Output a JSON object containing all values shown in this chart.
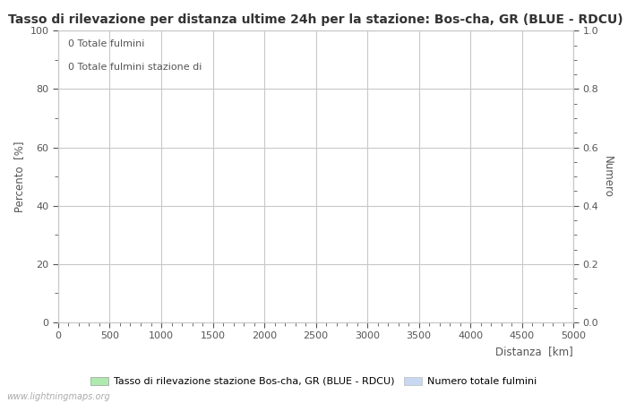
{
  "title": "Tasso di rilevazione per distanza ultime 24h per la stazione: Bos-cha, GR (BLUE - RDCU)",
  "xlabel": "Distanza  [km]",
  "ylabel_left": "Percento  [%]",
  "ylabel_right": "Numero",
  "xlim": [
    0,
    5000
  ],
  "ylim_left": [
    0,
    100
  ],
  "ylim_right": [
    0,
    1.0
  ],
  "xticks": [
    0,
    500,
    1000,
    1500,
    2000,
    2500,
    3000,
    3500,
    4000,
    4500,
    5000
  ],
  "yticks_left": [
    0,
    20,
    40,
    60,
    80,
    100
  ],
  "yticks_right": [
    0.0,
    0.2,
    0.4,
    0.6,
    0.8,
    1.0
  ],
  "annotation_line1": "0 Totale fulmini",
  "annotation_line2": "0 Totale fulmini stazione di",
  "grid_color": "#c8c8c8",
  "bg_color": "#ffffff",
  "text_color": "#555555",
  "legend_label1": "Tasso di rilevazione stazione Bos-cha, GR (BLUE - RDCU)",
  "legend_label2": "Numero totale fulmini",
  "legend_color1": "#aeeaae",
  "legend_color2": "#c8d8f0",
  "watermark": "www.lightningmaps.org",
  "title_fontsize": 10,
  "label_fontsize": 8.5,
  "tick_fontsize": 8,
  "annotation_fontsize": 8,
  "legend_fontsize": 8,
  "watermark_fontsize": 7
}
